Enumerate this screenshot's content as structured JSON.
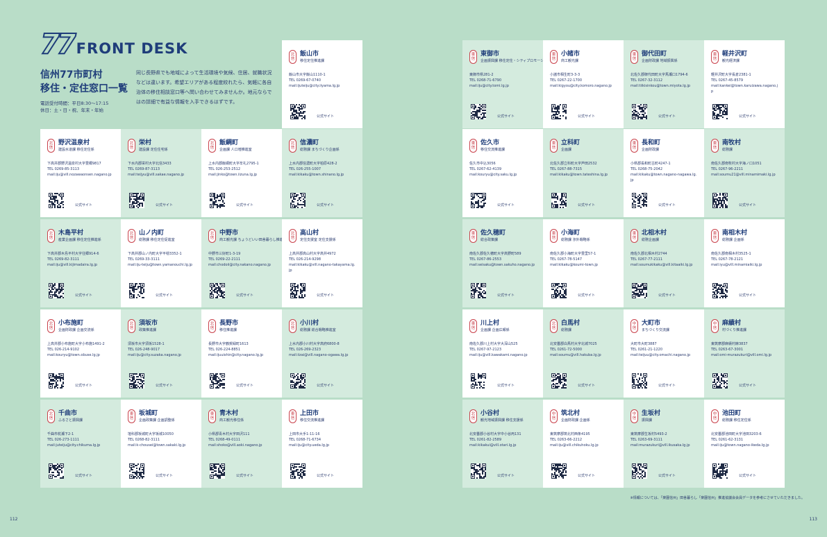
{
  "header": {
    "brand_number": "77",
    "brand_word": "FRONT DESK",
    "title_line1": "信州77市町村",
    "title_line2": "移住・定住窓口一覧",
    "hours_line1": "電話受付時間：平日8:30〜17:15",
    "hours_line2": "休日：土・日・祝、年末・年始",
    "intro": "同じ長野県でも地域によって生活環境や気候、住居、就職状況などは違います。希望エリアがある程度絞れたら、気軽に各自治体の移住相談窓口等へ問い合わせてみませんか。地元ならではの詳細で有益な情報を入手できるはずです。"
  },
  "labels": {
    "site": "公式サイト"
  },
  "regions": {
    "north": [
      "北",
      "信"
    ],
    "east": [
      "東",
      "信"
    ],
    "middle": [
      "中",
      "信"
    ]
  },
  "cards": [
    {
      "region": "north",
      "name": "飯山市",
      "dept": "移住定住推進課",
      "addr": "飯山市大字飯山1110-1",
      "tel": "TEL 0269-67-0740",
      "mail": "mail:ijuteiju@city.iiyama.lg.jp"
    },
    {
      "region": "north",
      "name": "野沢温泉村",
      "dept": "建設水道課 移住定住係",
      "addr": "下高井郡野沢温泉村大字豊郷9817",
      "tel": "TEL 0269-85-3113",
      "mail": "mail:iju@vill.nozawaonsen.nagano.jp"
    },
    {
      "region": "north",
      "name": "栄村",
      "dept": "建設課 定住住宅係",
      "addr": "下水内郡栄村大字北信3433",
      "tel": "TEL 0269-87-3113",
      "mail": "mail:teijyu@vill.sakae.nagano.jp"
    },
    {
      "region": "north",
      "name": "飯綱町",
      "dept": "企画課 人口増推進室",
      "addr": "上水内郡飯綱町大字牟礼2795-1",
      "tel": "TEL 026-253-2512",
      "mail": "mail:jinko@town.iizuna.lg.jp"
    },
    {
      "region": "north",
      "name": "信濃町",
      "dept": "総務課 まちづくり企画係",
      "addr": "上水内郡信濃町大字柏原428-2",
      "tel": "TEL 026-255-1007",
      "mail": "mail:kikaku@town.shinano.lg.jp"
    },
    {
      "region": "north",
      "name": "木島平村",
      "dept": "産業企画課 移住定住推進係",
      "addr": "下高井郡木島平村大字往郷914-6",
      "tel": "TEL 0269-82-3111",
      "mail": "mail:iju@vill.kijimadaira.lg.jp"
    },
    {
      "region": "north",
      "name": "山ノ内町",
      "dept": "総務課 移住定住促進室",
      "addr": "下高井郡山ノ内町大字平穏3352-1",
      "tel": "TEL 0269-33-3111",
      "mail": "mail:iju-teiju@town.yamanouchi.lg.jp"
    },
    {
      "region": "north",
      "name": "中野市",
      "dept": "商工観光課 ちょうどいい田舎暮らし推進係",
      "addr": "中野市三好町1-3-19",
      "tel": "TEL 0269-22-2111",
      "mail": "mail:chodoii@city.nakano.nagano.jp"
    },
    {
      "region": "north",
      "name": "高山村",
      "dept": "定住支援室 定住支援係",
      "addr": "上高井郡高山村大字高井4972",
      "tel": "TEL 026-214-9298",
      "mail": "mail:kikaku@vill.nagano-takayama.lg.jp"
    },
    {
      "region": "north",
      "name": "小布施町",
      "dept": "企画財政課 企画交流係",
      "addr": "上高井郡小布施町大字小布施1491-2",
      "tel": "TEL 026-214-9102",
      "mail": "mail:kouryu@town.obuse.lg.jp"
    },
    {
      "region": "north",
      "name": "須坂市",
      "dept": "政策推進課",
      "addr": "須坂市大字須坂1528-1",
      "tel": "TEL 026-248-9017",
      "mail": "mail:iju@city.suzaka.nagano.jp"
    },
    {
      "region": "north",
      "name": "長野市",
      "dept": "移住推進課",
      "addr": "長野市大字鶴賀緑町1613",
      "tel": "TEL 026-224-8851",
      "mail": "mail:ijuuishin@city.nagano.lg.jp"
    },
    {
      "region": "north",
      "name": "小川村",
      "dept": "総務課 総合戦略推進室",
      "addr": "上水内郡小川村大字高府6800-8",
      "tel": "TEL 026-269-2323",
      "mail": "mail:iizai@vill.nagano-ogawa.lg.jp"
    },
    {
      "region": "north",
      "name": "千曲市",
      "dept": "ふるさと振興課",
      "addr": "千曲市杭瀬下2-1",
      "tel": "TEL 026-273-1111",
      "mail": "mail:juteiju@city.chikuma.lg.jp"
    },
    {
      "region": "east",
      "name": "坂城町",
      "dept": "企画政策課 企画調整係",
      "addr": "埴科郡坂城町大字坂城10050",
      "tel": "TEL 0268-82-3111",
      "mail": "mail:k-chousei@town.sakaki.lg.jp"
    },
    {
      "region": "east",
      "name": "青木村",
      "dept": "商工観光移住係",
      "addr": "小県郡青木村大字田沢111",
      "tel": "TEL 0268-49-0111",
      "mail": "mail:shoko@vill.aoki.nagano.jp"
    },
    {
      "region": "east",
      "name": "上田市",
      "dept": "移住交流推進課",
      "addr": "上田市大手1-11-16",
      "tel": "TEL 0268-71-6734",
      "mail": "mail:iju@city.ueda.lg.jp"
    },
    {
      "region": "east",
      "name": "東御市",
      "dept": "企画振興課 移住定住・シティプロモーション係",
      "addr": "東御市県281-2",
      "tel": "TEL 0268-71-6790",
      "mail": "mail:iju@city.tomi.lg.jp"
    },
    {
      "region": "east",
      "name": "小諸市",
      "dept": "商工観光課",
      "addr": "小諸市相生町3-3-3",
      "tel": "TEL 0267-22-1700",
      "mail": "mail:kigyou@city.komoro.nagano.jp"
    },
    {
      "region": "east",
      "name": "御代田町",
      "dept": "企画財政課 地域振興係",
      "addr": "北佐久郡御代田町大字馬瀬口1794-6",
      "tel": "TEL 0267-32-3112",
      "mail": "mail:tiikisinkou@town.miyota.lg.jp"
    },
    {
      "region": "east",
      "name": "軽井沢町",
      "dept": "観光経済課",
      "addr": "軽井沢町大字長倉2381-1",
      "tel": "TEL 0267-45-8579",
      "mail": "mail:kankei@town.karuizawa.nagano.jp"
    },
    {
      "region": "east",
      "name": "佐久市",
      "dept": "移住交流推進課",
      "addr": "佐久市中込3056",
      "tel": "TEL 0267-62-4139",
      "mail": "mail:kouryu@city.saku.lg.jp"
    },
    {
      "region": "east",
      "name": "立科町",
      "dept": "企画課",
      "addr": "北佐久郡立科町大字芦田2532",
      "tel": "TEL 0267-88-7315",
      "mail": "mail:kikaku@town.tateshina.lg.jp"
    },
    {
      "region": "east",
      "name": "長和町",
      "dept": "企画財政課",
      "addr": "小県郡長和町古町4247-1",
      "tel": "TEL 0268-75-2042",
      "mail": "mail:kikaku@town.nagano-nagawa.lg.jp"
    },
    {
      "region": "east",
      "name": "南牧村",
      "dept": "総務課",
      "addr": "南佐久郡南牧村大字海ノ口1051",
      "tel": "TEL 0267-96-2211",
      "mail": "mail:soumu21@vill.minamimaki.lg.jp"
    },
    {
      "region": "east",
      "name": "佐久穂町",
      "dept": "総合政策課",
      "addr": "南佐久郡佐久穂町大字高野町589",
      "tel": "TEL 0267-86-2553",
      "mail": "mail:seisaku@town.sakuho.nagano.jp"
    },
    {
      "region": "east",
      "name": "小海町",
      "dept": "総務課 渉外戦略係",
      "addr": "南佐久郡小海町大字豊里57-1",
      "tel": "TEL 0267-78-5147",
      "mail": "mail:kikaku@koumi-town.jp"
    },
    {
      "region": "east",
      "name": "北相木村",
      "dept": "総務企画課",
      "addr": "南佐久郡北相木村2744",
      "tel": "TEL 0267-77-2111",
      "mail": "mail:soumukikaku@vill.kitaaiki.lg.jp"
    },
    {
      "region": "east",
      "name": "南相木村",
      "dept": "総務課 企画係",
      "addr": "南佐久郡南相木村3525-1",
      "tel": "TEL 0267-78-2121",
      "mail": "mail:iyu@vill.minamiaiki.lg.jp"
    },
    {
      "region": "east",
      "name": "川上村",
      "dept": "企画課 企画広報係",
      "addr": "南佐久郡川上村大字大深山525",
      "tel": "TEL 0267-97-2123",
      "mail": "mail:iju@vill.kawakami.nagano.jp"
    },
    {
      "region": "north",
      "name": "白馬村",
      "dept": "総務課",
      "addr": "北安曇郡白馬村大字北城7025",
      "tel": "TEL 0261-72-5000",
      "mail": "mail:soumu@vill.hakuba.lg.jp"
    },
    {
      "region": "middle",
      "name": "大町市",
      "dept": "まちづくり交流課",
      "addr": "大町市大町3887",
      "tel": "TEL 0261-21-1220",
      "mail": "mail:teijuu@city.omachi.nagano.jp"
    },
    {
      "region": "middle",
      "name": "麻績村",
      "dept": "村づくり推進課",
      "addr": "東筑摩郡麻績村麻3837",
      "tel": "TEL 0263-67-3001",
      "mail": "mail:omi-murazukuri@vill.omi.lg.jp"
    },
    {
      "region": "north",
      "name": "小谷村",
      "dept": "観光地域振興課 移住支援係",
      "addr": "北安曇郡小谷村大字中小谷丙131",
      "tel": "TEL 0261-82-2589",
      "mail": "mail:kikakui@vill.otari.lg.jp"
    },
    {
      "region": "middle",
      "name": "筑北村",
      "dept": "企画財政課 企画係",
      "addr": "東筑摩郡筑北村西条4195",
      "tel": "TEL 0263-66-2212",
      "mail": "mail:iju@vill.chikuhoku.lg.jp"
    },
    {
      "region": "middle",
      "name": "生坂村",
      "dept": "振興課",
      "addr": "東筑摩郡生坂村5493-2",
      "tel": "TEL 0263-69-3111",
      "mail": "mail:murazukuri@vill.ikusaka.lg.jp"
    },
    {
      "region": "middle",
      "name": "池田町",
      "dept": "総務課 移住定住係",
      "addr": "北安曇郡池田町大字池田3203-6",
      "tel": "TEL 0261-62-3131",
      "mail": "mail:iju@town.nagano-ikeda.lg.jp"
    }
  ],
  "footnote": "※情報については、「楽園信州」田舎暮らし「楽園信州」推進協議会会員データを参考にさせていただきました。",
  "page_left": "112",
  "page_right": "113"
}
